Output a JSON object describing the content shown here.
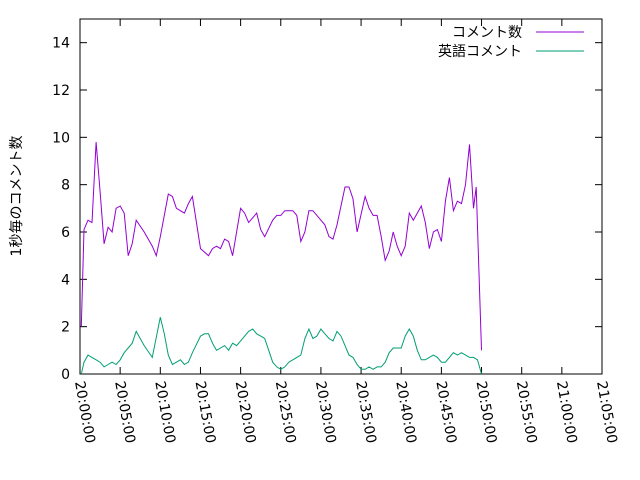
{
  "chart_data": {
    "type": "line",
    "title": "",
    "xlabel": "",
    "ylabel": "1秒毎のコメント数",
    "xlim": [
      "20:00:00",
      "21:05:00"
    ],
    "ylim": [
      0,
      15
    ],
    "x_ticks": [
      "20:00:00",
      "20:05:00",
      "20:10:00",
      "20:15:00",
      "20:20:00",
      "20:25:00",
      "20:30:00",
      "20:35:00",
      "20:40:00",
      "20:45:00",
      "20:50:00",
      "20:55:00",
      "21:00:00",
      "21:05:00"
    ],
    "y_ticks": [
      0,
      2,
      4,
      6,
      8,
      10,
      12,
      14
    ],
    "grid": false,
    "legend_position": "top-right",
    "series": [
      {
        "name": "コメント数",
        "color": "#9400d3",
        "points": [
          [
            "20:00:10",
            2.0
          ],
          [
            "20:00:30",
            6.1
          ],
          [
            "20:01:00",
            6.5
          ],
          [
            "20:01:30",
            6.4
          ],
          [
            "20:02:00",
            9.8
          ],
          [
            "20:02:30",
            7.7
          ],
          [
            "20:03:00",
            5.5
          ],
          [
            "20:03:30",
            6.2
          ],
          [
            "20:04:00",
            6.0
          ],
          [
            "20:04:30",
            7.0
          ],
          [
            "20:05:00",
            7.1
          ],
          [
            "20:05:30",
            6.8
          ],
          [
            "20:06:00",
            5.0
          ],
          [
            "20:06:30",
            5.5
          ],
          [
            "20:07:00",
            6.5
          ],
          [
            "20:08:00",
            6.0
          ],
          [
            "20:09:00",
            5.4
          ],
          [
            "20:09:30",
            5.0
          ],
          [
            "20:10:00",
            5.8
          ],
          [
            "20:11:00",
            7.6
          ],
          [
            "20:11:30",
            7.5
          ],
          [
            "20:12:00",
            7.0
          ],
          [
            "20:13:00",
            6.8
          ],
          [
            "20:13:30",
            7.2
          ],
          [
            "20:14:00",
            7.5
          ],
          [
            "20:15:00",
            5.3
          ],
          [
            "20:16:00",
            5.0
          ],
          [
            "20:16:30",
            5.3
          ],
          [
            "20:17:00",
            5.4
          ],
          [
            "20:17:30",
            5.3
          ],
          [
            "20:18:00",
            5.7
          ],
          [
            "20:18:30",
            5.6
          ],
          [
            "20:19:00",
            5.0
          ],
          [
            "20:20:00",
            7.0
          ],
          [
            "20:20:30",
            6.8
          ],
          [
            "20:21:00",
            6.4
          ],
          [
            "20:21:30",
            6.6
          ],
          [
            "20:22:00",
            6.8
          ],
          [
            "20:22:30",
            6.1
          ],
          [
            "20:23:00",
            5.8
          ],
          [
            "20:24:00",
            6.5
          ],
          [
            "20:24:30",
            6.7
          ],
          [
            "20:25:00",
            6.7
          ],
          [
            "20:25:30",
            6.9
          ],
          [
            "20:26:00",
            6.9
          ],
          [
            "20:26:30",
            6.9
          ],
          [
            "20:27:00",
            6.7
          ],
          [
            "20:27:30",
            5.6
          ],
          [
            "20:28:00",
            6.0
          ],
          [
            "20:28:30",
            6.9
          ],
          [
            "20:29:00",
            6.9
          ],
          [
            "20:30:00",
            6.5
          ],
          [
            "20:30:30",
            6.3
          ],
          [
            "20:31:00",
            5.8
          ],
          [
            "20:31:30",
            5.7
          ],
          [
            "20:32:00",
            6.3
          ],
          [
            "20:33:00",
            7.9
          ],
          [
            "20:33:30",
            7.9
          ],
          [
            "20:34:00",
            7.4
          ],
          [
            "20:34:30",
            6.0
          ],
          [
            "20:35:30",
            7.5
          ],
          [
            "20:36:00",
            7.0
          ],
          [
            "20:36:30",
            6.7
          ],
          [
            "20:37:00",
            6.7
          ],
          [
            "20:37:30",
            5.8
          ],
          [
            "20:38:00",
            4.8
          ],
          [
            "20:38:30",
            5.2
          ],
          [
            "20:39:00",
            6.0
          ],
          [
            "20:39:30",
            5.4
          ],
          [
            "20:40:00",
            5.0
          ],
          [
            "20:40:30",
            5.4
          ],
          [
            "20:41:00",
            6.8
          ],
          [
            "20:41:30",
            6.5
          ],
          [
            "20:42:00",
            6.8
          ],
          [
            "20:42:30",
            7.1
          ],
          [
            "20:43:00",
            6.4
          ],
          [
            "20:43:30",
            5.3
          ],
          [
            "20:44:00",
            6.0
          ],
          [
            "20:44:30",
            6.1
          ],
          [
            "20:45:00",
            5.6
          ],
          [
            "20:45:30",
            7.3
          ],
          [
            "20:46:00",
            8.3
          ],
          [
            "20:46:30",
            6.9
          ],
          [
            "20:47:00",
            7.3
          ],
          [
            "20:47:30",
            7.2
          ],
          [
            "20:48:00",
            8.0
          ],
          [
            "20:48:30",
            9.7
          ],
          [
            "20:49:00",
            7.0
          ],
          [
            "20:49:20",
            7.9
          ],
          [
            "20:50:00",
            1.0
          ]
        ]
      },
      {
        "name": "英語コメント",
        "color": "#009e73",
        "points": [
          [
            "20:00:10",
            0.0
          ],
          [
            "20:00:30",
            0.5
          ],
          [
            "20:01:00",
            0.8
          ],
          [
            "20:01:30",
            0.7
          ],
          [
            "20:02:00",
            0.6
          ],
          [
            "20:02:30",
            0.5
          ],
          [
            "20:03:00",
            0.3
          ],
          [
            "20:03:30",
            0.4
          ],
          [
            "20:04:00",
            0.5
          ],
          [
            "20:04:30",
            0.4
          ],
          [
            "20:05:00",
            0.6
          ],
          [
            "20:05:30",
            0.9
          ],
          [
            "20:06:00",
            1.1
          ],
          [
            "20:06:30",
            1.3
          ],
          [
            "20:07:00",
            1.8
          ],
          [
            "20:07:30",
            1.5
          ],
          [
            "20:08:00",
            1.2
          ],
          [
            "20:09:00",
            0.7
          ],
          [
            "20:10:00",
            2.4
          ],
          [
            "20:10:30",
            1.7
          ],
          [
            "20:11:00",
            0.8
          ],
          [
            "20:11:30",
            0.4
          ],
          [
            "20:12:00",
            0.5
          ],
          [
            "20:12:30",
            0.6
          ],
          [
            "20:13:00",
            0.4
          ],
          [
            "20:13:30",
            0.5
          ],
          [
            "20:14:00",
            0.9
          ],
          [
            "20:15:00",
            1.6
          ],
          [
            "20:15:30",
            1.7
          ],
          [
            "20:16:00",
            1.7
          ],
          [
            "20:16:30",
            1.3
          ],
          [
            "20:17:00",
            1.0
          ],
          [
            "20:17:30",
            1.1
          ],
          [
            "20:18:00",
            1.2
          ],
          [
            "20:18:30",
            1.0
          ],
          [
            "20:19:00",
            1.3
          ],
          [
            "20:19:30",
            1.2
          ],
          [
            "20:20:00",
            1.4
          ],
          [
            "20:21:00",
            1.8
          ],
          [
            "20:21:30",
            1.9
          ],
          [
            "20:22:00",
            1.7
          ],
          [
            "20:22:30",
            1.6
          ],
          [
            "20:23:00",
            1.5
          ],
          [
            "20:23:30",
            1.0
          ],
          [
            "20:24:00",
            0.5
          ],
          [
            "20:24:30",
            0.3
          ],
          [
            "20:25:00",
            0.2
          ],
          [
            "20:25:30",
            0.3
          ],
          [
            "20:26:00",
            0.5
          ],
          [
            "20:26:30",
            0.6
          ],
          [
            "20:27:00",
            0.7
          ],
          [
            "20:27:30",
            0.8
          ],
          [
            "20:28:00",
            1.5
          ],
          [
            "20:28:30",
            1.9
          ],
          [
            "20:29:00",
            1.5
          ],
          [
            "20:29:30",
            1.6
          ],
          [
            "20:30:00",
            1.9
          ],
          [
            "20:30:30",
            1.7
          ],
          [
            "20:31:00",
            1.5
          ],
          [
            "20:31:30",
            1.4
          ],
          [
            "20:32:00",
            1.8
          ],
          [
            "20:32:30",
            1.6
          ],
          [
            "20:33:00",
            1.2
          ],
          [
            "20:33:30",
            0.8
          ],
          [
            "20:34:00",
            0.7
          ],
          [
            "20:34:30",
            0.4
          ],
          [
            "20:35:00",
            0.2
          ],
          [
            "20:35:30",
            0.2
          ],
          [
            "20:36:00",
            0.3
          ],
          [
            "20:36:30",
            0.2
          ],
          [
            "20:37:00",
            0.3
          ],
          [
            "20:37:30",
            0.3
          ],
          [
            "20:38:00",
            0.5
          ],
          [
            "20:38:30",
            0.9
          ],
          [
            "20:39:00",
            1.1
          ],
          [
            "20:39:30",
            1.1
          ],
          [
            "20:40:00",
            1.1
          ],
          [
            "20:40:30",
            1.6
          ],
          [
            "20:41:00",
            1.9
          ],
          [
            "20:41:30",
            1.6
          ],
          [
            "20:42:00",
            1.0
          ],
          [
            "20:42:30",
            0.6
          ],
          [
            "20:43:00",
            0.6
          ],
          [
            "20:43:30",
            0.7
          ],
          [
            "20:44:00",
            0.8
          ],
          [
            "20:44:30",
            0.7
          ],
          [
            "20:45:00",
            0.5
          ],
          [
            "20:45:30",
            0.5
          ],
          [
            "20:46:00",
            0.7
          ],
          [
            "20:46:30",
            0.9
          ],
          [
            "20:47:00",
            0.8
          ],
          [
            "20:47:30",
            0.9
          ],
          [
            "20:48:00",
            0.8
          ],
          [
            "20:48:30",
            0.7
          ],
          [
            "20:49:00",
            0.7
          ],
          [
            "20:49:30",
            0.6
          ],
          [
            "20:50:00",
            0.0
          ]
        ]
      }
    ]
  }
}
